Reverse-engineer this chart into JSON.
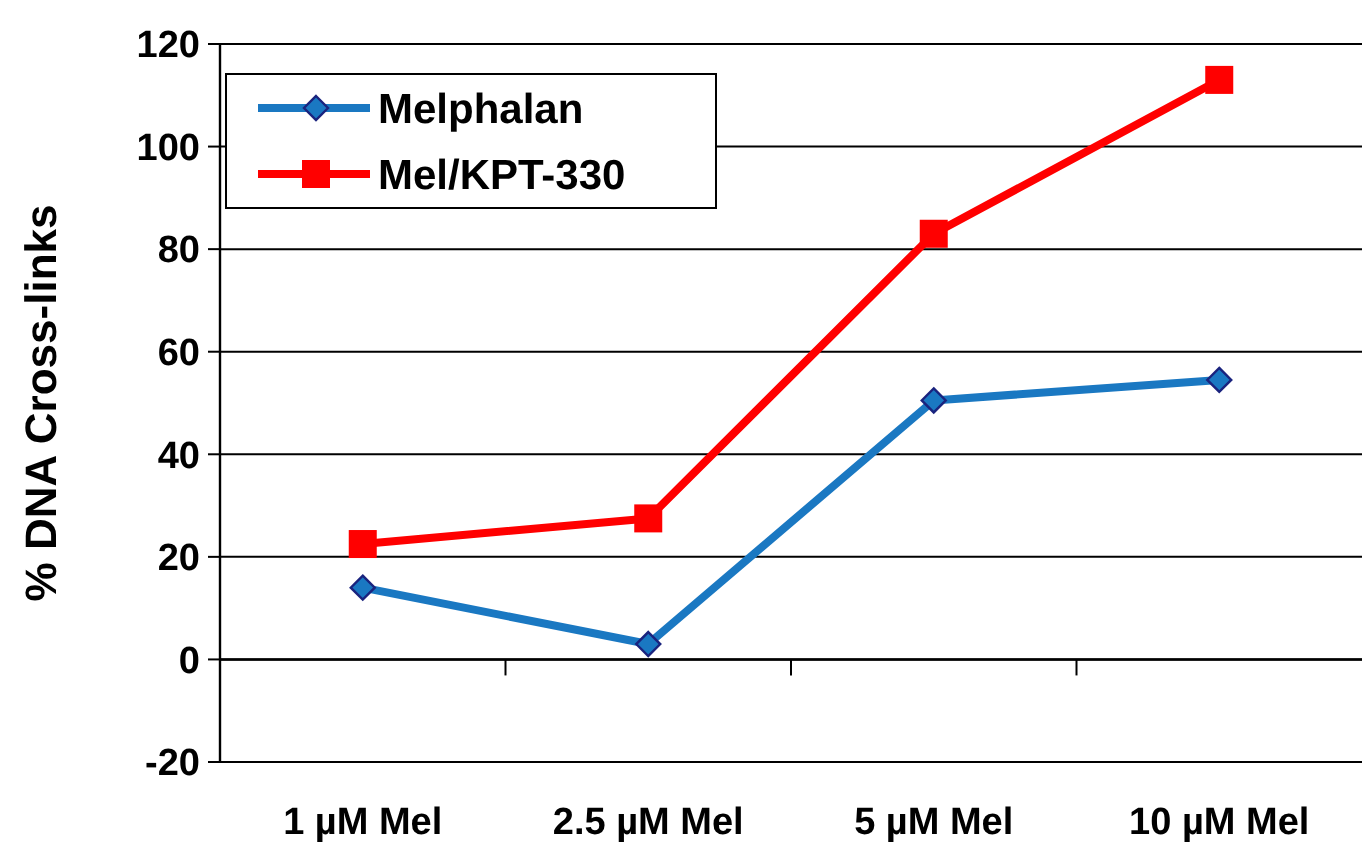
{
  "chart_data": {
    "type": "line",
    "ylabel": "% DNA Cross-links",
    "categories": [
      "1 µM Mel",
      "2.5 µM Mel",
      "5 µM Mel",
      "10 µM Mel"
    ],
    "series": [
      {
        "name": "Melphalan",
        "color": "#1a78c2",
        "values": [
          14,
          3,
          50.5,
          54.5
        ],
        "marker": "diamond"
      },
      {
        "name": "Mel/KPT-330",
        "color": "#ff0000",
        "values": [
          22.5,
          27.5,
          83,
          113
        ],
        "marker": "square"
      }
    ],
    "ylim": [
      -20,
      120
    ],
    "yticks": [
      -20,
      0,
      20,
      40,
      60,
      80,
      100,
      120
    ],
    "grid": "y",
    "legend": "top left"
  }
}
